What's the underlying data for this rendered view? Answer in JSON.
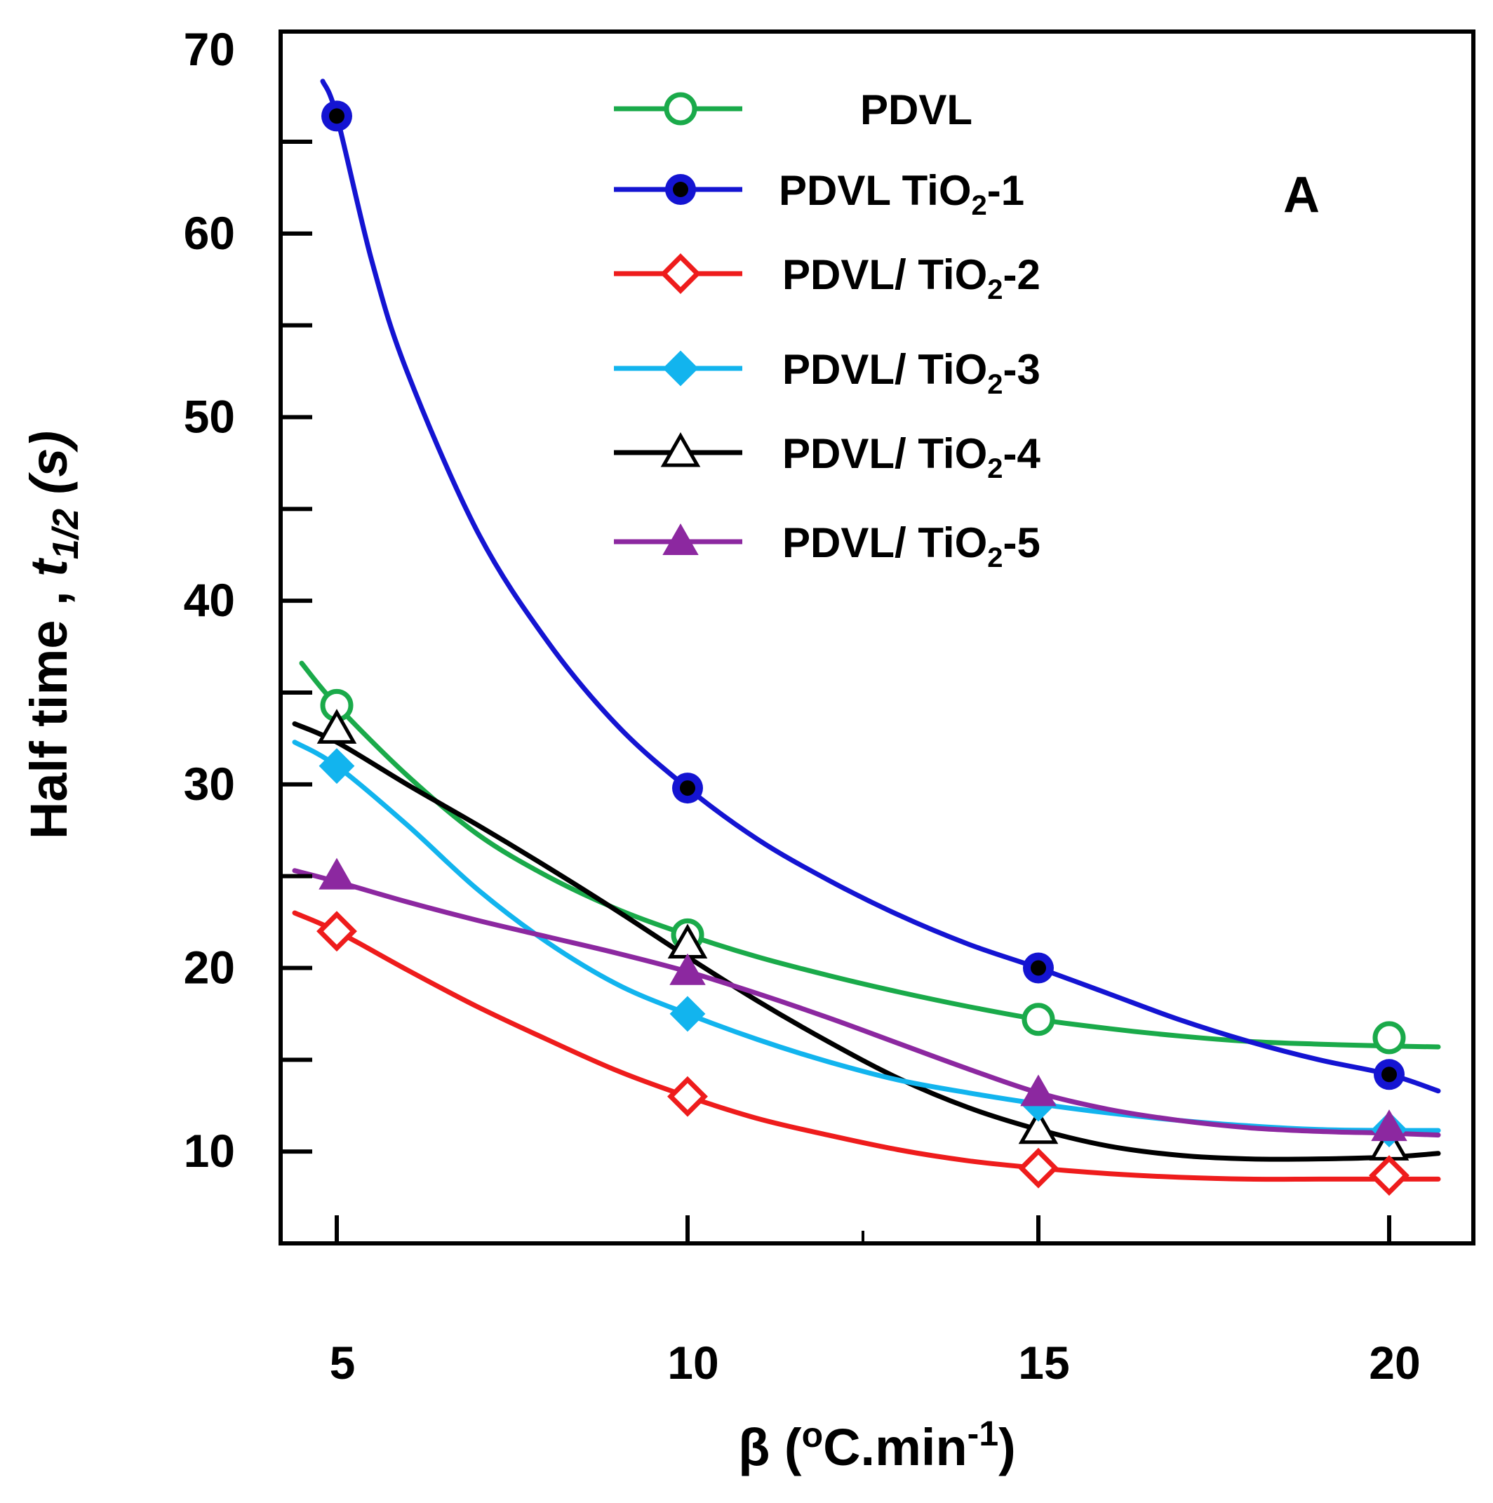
{
  "chart_data": {
    "type": "line",
    "title": "",
    "panel_label": "A",
    "xlabel": {
      "prefix": "β (",
      "sup1": "o",
      "mid": "C.min",
      "sup2": "-1",
      "suffix": ")"
    },
    "ylabel": {
      "prefix": "Half time , ",
      "italic": "t",
      "sub": "1/2",
      "suffix": " (s)"
    },
    "xlim": [
      4.2,
      21.2
    ],
    "ylim": [
      5,
      71
    ],
    "xticks": [
      5,
      10,
      15,
      20
    ],
    "yticks": [
      10,
      20,
      30,
      40,
      50,
      60,
      70
    ],
    "ytick_labels": [
      "10",
      "20",
      "30",
      "40",
      "50",
      "60",
      "70"
    ],
    "xtick_labels": [
      "5",
      "10",
      "15",
      "20"
    ],
    "legend_position": "top-center",
    "x": [
      5,
      10,
      15,
      20
    ],
    "series": [
      {
        "name": "PDVL",
        "label_parts": [
          "PDVL",
          "",
          ""
        ],
        "color": "#1aaa4a",
        "marker": "circle-open",
        "values": [
          34.3,
          21.8,
          17.2,
          16.2
        ],
        "curve": [
          [
            4.5,
            36.6
          ],
          [
            5,
            34.3
          ],
          [
            6,
            30.5
          ],
          [
            7,
            27.3
          ],
          [
            8,
            25.0
          ],
          [
            9,
            23.2
          ],
          [
            10,
            21.8
          ],
          [
            11,
            20.6
          ],
          [
            12,
            19.6
          ],
          [
            13,
            18.7
          ],
          [
            14,
            17.9
          ],
          [
            15,
            17.2
          ],
          [
            16,
            16.7
          ],
          [
            17,
            16.3
          ],
          [
            18,
            16.0
          ],
          [
            19,
            15.85
          ],
          [
            20,
            15.75
          ],
          [
            20.7,
            15.7
          ]
        ]
      },
      {
        "name": "PDVL TiO2-1",
        "label_parts": [
          "PDVL TiO",
          "2",
          "-1"
        ],
        "color": "#1414d2",
        "marker": "circle-filled",
        "values": [
          66.4,
          29.8,
          20.0,
          14.2
        ],
        "curve": [
          [
            4.8,
            68.3
          ],
          [
            5,
            66.4
          ],
          [
            5.5,
            58.5
          ],
          [
            6,
            52.5
          ],
          [
            7,
            43.8
          ],
          [
            8,
            37.8
          ],
          [
            9,
            33.2
          ],
          [
            10,
            29.8
          ],
          [
            11,
            27.0
          ],
          [
            12,
            24.8
          ],
          [
            13,
            22.9
          ],
          [
            14,
            21.3
          ],
          [
            15,
            20.0
          ],
          [
            16,
            18.6
          ],
          [
            17,
            17.2
          ],
          [
            18,
            16.0
          ],
          [
            19,
            15.0
          ],
          [
            20,
            14.2
          ],
          [
            20.7,
            13.3
          ]
        ]
      },
      {
        "name": "PDVL/ TiO2-2",
        "label_parts": [
          "PDVL/ TiO",
          "2",
          "-2"
        ],
        "color": "#ee1c1c",
        "marker": "diamond-open",
        "values": [
          22.0,
          13.0,
          9.1,
          8.7
        ],
        "curve": [
          [
            4.4,
            23.0
          ],
          [
            5,
            22.0
          ],
          [
            6,
            19.9
          ],
          [
            7,
            17.9
          ],
          [
            8,
            16.1
          ],
          [
            9,
            14.4
          ],
          [
            10,
            13.0
          ],
          [
            11,
            11.8
          ],
          [
            12,
            10.9
          ],
          [
            13,
            10.1
          ],
          [
            14,
            9.5
          ],
          [
            15,
            9.1
          ],
          [
            16,
            8.8
          ],
          [
            17,
            8.6
          ],
          [
            18,
            8.5
          ],
          [
            19,
            8.5
          ],
          [
            20,
            8.5
          ],
          [
            20.7,
            8.5
          ]
        ]
      },
      {
        "name": "PDVL/ TiO2-3",
        "label_parts": [
          "PDVL/ TiO",
          "2",
          "-3"
        ],
        "color": "#12b4ee",
        "marker": "diamond-filled",
        "values": [
          31.0,
          17.5,
          12.6,
          11.2
        ],
        "curve": [
          [
            4.4,
            32.3
          ],
          [
            5,
            31.0
          ],
          [
            6,
            27.8
          ],
          [
            7,
            24.3
          ],
          [
            8,
            21.4
          ],
          [
            9,
            19.1
          ],
          [
            10,
            17.5
          ],
          [
            11,
            16.1
          ],
          [
            12,
            14.9
          ],
          [
            13,
            13.9
          ],
          [
            14,
            13.2
          ],
          [
            15,
            12.6
          ],
          [
            16,
            12.1
          ],
          [
            17,
            11.7
          ],
          [
            18,
            11.4
          ],
          [
            19,
            11.2
          ],
          [
            20,
            11.15
          ],
          [
            20.7,
            11.15
          ]
        ]
      },
      {
        "name": "PDVL/ TiO2-4",
        "label_parts": [
          "PDVL/ TiO",
          "2",
          "-4"
        ],
        "color": "#000000",
        "marker": "triangle-open",
        "values": [
          33.0,
          21.3,
          11.2,
          10.3
        ],
        "curve": [
          [
            4.4,
            33.3
          ],
          [
            5,
            32.3
          ],
          [
            6,
            30.0
          ],
          [
            7,
            27.8
          ],
          [
            8,
            25.5
          ],
          [
            9,
            23.1
          ],
          [
            10,
            20.6
          ],
          [
            11,
            18.2
          ],
          [
            12,
            16.0
          ],
          [
            13,
            14.0
          ],
          [
            14,
            12.4
          ],
          [
            15,
            11.2
          ],
          [
            16,
            10.3
          ],
          [
            17,
            9.8
          ],
          [
            18,
            9.6
          ],
          [
            19,
            9.6
          ],
          [
            20,
            9.7
          ],
          [
            20.7,
            9.9
          ]
        ]
      },
      {
        "name": "PDVL/ TiO2-5",
        "label_parts": [
          "PDVL/ TiO",
          "2",
          "-5"
        ],
        "color": "#8c28a0",
        "marker": "triangle-filled",
        "values": [
          25.0,
          19.8,
          13.2,
          11.3
        ],
        "curve": [
          [
            4.4,
            25.3
          ],
          [
            5,
            24.7
          ],
          [
            6,
            23.6
          ],
          [
            7,
            22.6
          ],
          [
            8,
            21.7
          ],
          [
            9,
            20.8
          ],
          [
            10,
            19.8
          ],
          [
            11,
            18.6
          ],
          [
            12,
            17.3
          ],
          [
            13,
            15.9
          ],
          [
            14,
            14.5
          ],
          [
            15,
            13.2
          ],
          [
            16,
            12.3
          ],
          [
            17,
            11.7
          ],
          [
            18,
            11.3
          ],
          [
            19,
            11.1
          ],
          [
            20,
            11.0
          ],
          [
            20.7,
            10.9
          ]
        ]
      }
    ]
  }
}
